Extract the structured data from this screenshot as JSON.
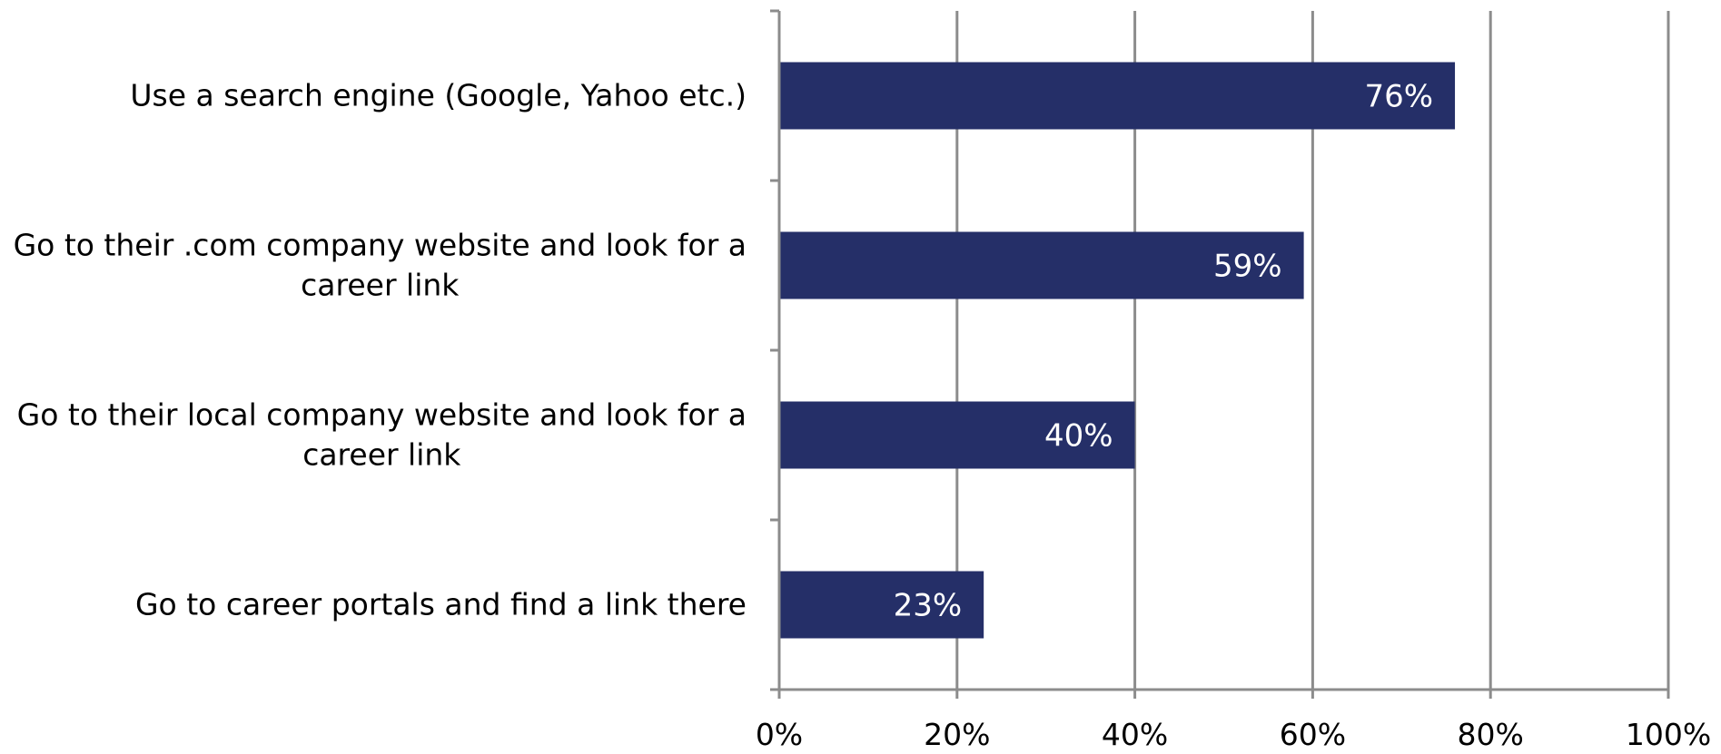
{
  "chart_data": {
    "type": "bar",
    "orientation": "horizontal",
    "categories": [
      [
        "Use a search engine (Google, Yahoo etc.)"
      ],
      [
        "Go to their .com company website and look for a",
        "career link"
      ],
      [
        "Go to their local company website and look for a",
        "career link"
      ],
      [
        "Go to career portals and find a link there"
      ]
    ],
    "values": [
      76,
      59,
      40,
      23
    ],
    "data_labels": [
      "76%",
      "59%",
      "40%",
      "23%"
    ],
    "xlim": [
      0,
      100
    ],
    "x_ticks": [
      0,
      20,
      40,
      60,
      80,
      100
    ],
    "x_tick_labels": [
      "0%",
      "20%",
      "40%",
      "60%",
      "80%",
      "100%"
    ],
    "grid": true,
    "legend": "none",
    "colors": {
      "bar": "#252F68",
      "grid": "#8C8C8C",
      "axis": "#8C8C8C",
      "text": "#000000",
      "data_label": "#FFFFFF"
    }
  }
}
